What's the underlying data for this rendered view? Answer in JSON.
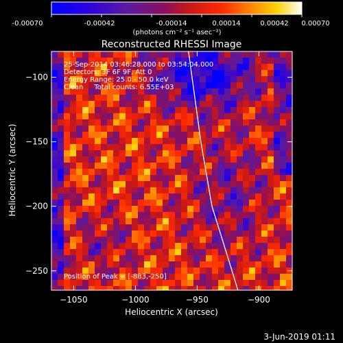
{
  "colorbar": {
    "ticks": [
      "-0.00070",
      "-0.00042",
      "-0.00014",
      "0.00014",
      "0.00042",
      "0.00070"
    ],
    "unit_label": "(photons cm⁻² s⁻¹ asec⁻²)",
    "range": [
      -0.0007,
      0.0007
    ]
  },
  "chart_data": {
    "type": "heatmap",
    "title": "Reconstructed RHESSI Image",
    "xlabel": "Heliocentric X (arcsec)",
    "ylabel": "Heliocentric Y (arcsec)",
    "xlim": [
      -1068,
      -873
    ],
    "ylim": [
      -265,
      -80
    ],
    "x_ticks": [
      {
        "value": -1050,
        "label": "−1050"
      },
      {
        "value": -1000,
        "label": "−1000"
      },
      {
        "value": -950,
        "label": "−950"
      },
      {
        "value": -900,
        "label": "−900"
      }
    ],
    "y_ticks": [
      {
        "value": -100,
        "label": "−100"
      },
      {
        "value": -150,
        "label": "−150"
      },
      {
        "value": -200,
        "label": "−200"
      },
      {
        "value": -250,
        "label": "−250"
      }
    ],
    "annotations": [
      "25-Sep-2014 03:46:28.000 to 03:54:04.000",
      "Detectors: 3F 6F 9F, Att 0",
      "Energy Range: 25.0 - 50.0 keV",
      "Clean     Total counts: 6.55E+03"
    ],
    "peak_label": "Position of Peak = [-883,-250]",
    "peak": {
      "x": -883,
      "y": -250
    },
    "limb": [
      {
        "x": -957,
        "y": -80
      },
      {
        "x": -947,
        "y": -150
      },
      {
        "x": -938,
        "y": -200
      },
      {
        "x": -925,
        "y": -240
      },
      {
        "x": -917,
        "y": -265
      }
    ],
    "colormap": "rainbow/heat (blue-purple to red-yellow-white)"
  },
  "footer": {
    "date_label": "3-Jun-2019 01:11"
  }
}
